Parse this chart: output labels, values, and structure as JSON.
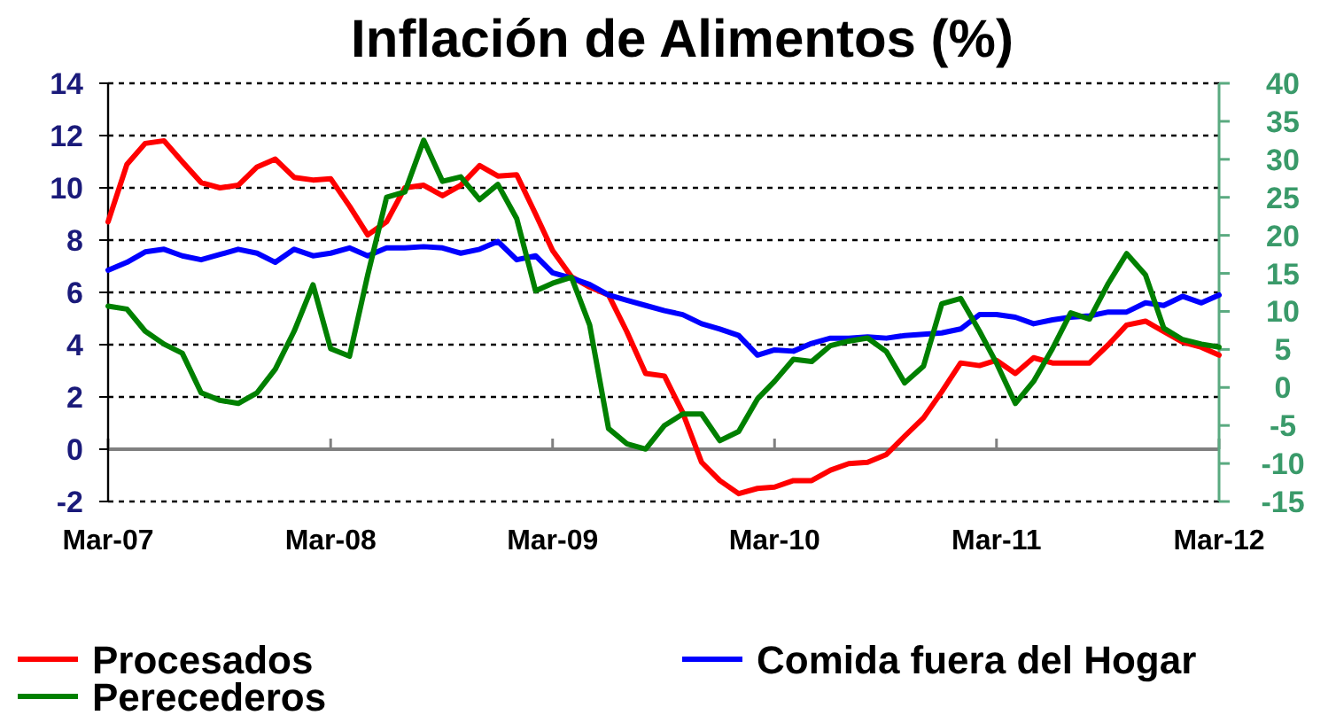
{
  "chart_data": {
    "type": "line",
    "title": "Inflación de Alimentos (%)",
    "x": [
      "2007-03",
      "2007-04",
      "2007-05",
      "2007-06",
      "2007-07",
      "2007-08",
      "2007-09",
      "2007-10",
      "2007-11",
      "2007-12",
      "2008-01",
      "2008-02",
      "2008-03",
      "2008-04",
      "2008-05",
      "2008-06",
      "2008-07",
      "2008-08",
      "2008-09",
      "2008-10",
      "2008-11",
      "2008-12",
      "2009-01",
      "2009-02",
      "2009-03",
      "2009-04",
      "2009-05",
      "2009-06",
      "2009-07",
      "2009-08",
      "2009-09",
      "2009-10",
      "2009-11",
      "2009-12",
      "2010-01",
      "2010-02",
      "2010-03",
      "2010-04",
      "2010-05",
      "2010-06",
      "2010-07",
      "2010-08",
      "2010-09",
      "2010-10",
      "2010-11",
      "2010-12",
      "2011-01",
      "2011-02",
      "2011-03",
      "2011-04",
      "2011-05",
      "2011-06",
      "2011-07",
      "2011-08",
      "2011-09",
      "2011-10",
      "2011-11",
      "2011-12",
      "2012-01",
      "2012-02",
      "2012-03"
    ],
    "series": [
      {
        "name": "Procesados",
        "color": "#ff0000",
        "values": [
          8.7,
          10.9,
          11.7,
          11.8,
          11.0,
          10.2,
          10.0,
          10.1,
          10.8,
          11.1,
          10.4,
          10.3,
          10.35,
          9.3,
          8.2,
          8.7,
          10.0,
          10.1,
          9.7,
          10.1,
          10.85,
          10.45,
          10.5,
          9.0,
          7.6,
          6.6,
          6.2,
          5.9,
          4.5,
          2.9,
          2.8,
          1.4,
          -0.5,
          -1.2,
          -1.7,
          -1.5,
          -1.45,
          -1.2,
          -1.2,
          -0.8,
          -0.55,
          -0.5,
          -0.2,
          0.5,
          1.2,
          2.2,
          3.3,
          3.2,
          3.4,
          2.9,
          3.5,
          3.3,
          3.3,
          3.3,
          4.0,
          4.75,
          4.9,
          4.5,
          4.1,
          3.9,
          3.6
        ]
      },
      {
        "name": "Comida fuera del Hogar",
        "color": "#0000ff",
        "values": [
          6.85,
          7.15,
          7.55,
          7.65,
          7.4,
          7.25,
          7.45,
          7.65,
          7.5,
          7.15,
          7.65,
          7.4,
          7.5,
          7.7,
          7.4,
          7.7,
          7.7,
          7.75,
          7.7,
          7.5,
          7.65,
          7.95,
          7.25,
          7.4,
          6.75,
          6.55,
          6.3,
          5.9,
          5.7,
          5.5,
          5.3,
          5.15,
          4.8,
          4.6,
          4.35,
          3.6,
          3.8,
          3.75,
          4.05,
          4.25,
          4.25,
          4.3,
          4.25,
          4.35,
          4.4,
          4.45,
          4.6,
          5.15,
          5.15,
          5.05,
          4.8,
          4.95,
          5.05,
          5.1,
          5.25,
          5.25,
          5.6,
          5.5,
          5.85,
          5.6,
          5.9
        ]
      },
      {
        "name": "Perecederos",
        "color": "#008000",
        "axis": "y2",
        "values": [
          10.7,
          10.3,
          7.4,
          5.7,
          4.5,
          -0.7,
          -1.7,
          -2.1,
          -0.7,
          2.4,
          7.4,
          13.5,
          5.1,
          4.1,
          14.8,
          25.0,
          25.7,
          32.5,
          27.1,
          27.7,
          24.7,
          26.7,
          22.2,
          12.7,
          13.7,
          14.5,
          8.2,
          -5.4,
          -7.4,
          -8.1,
          -5.0,
          -3.5,
          -3.5,
          -7.0,
          -5.8,
          -1.5,
          0.8,
          3.7,
          3.4,
          5.5,
          6.1,
          6.5,
          4.7,
          0.6,
          2.8,
          11.0,
          11.7,
          7.4,
          3.2,
          -2.1,
          0.8,
          5.1,
          9.8,
          9.0,
          13.7,
          17.6,
          14.8,
          7.8,
          6.3,
          5.7,
          5.3
        ]
      }
    ],
    "xlim": [
      "2007-03",
      "2012-03"
    ],
    "xticks": [
      {
        "value": "2007-03",
        "label": "Mar-07"
      },
      {
        "value": "2008-03",
        "label": "Mar-08"
      },
      {
        "value": "2009-03",
        "label": "Mar-09"
      },
      {
        "value": "2010-03",
        "label": "Mar-10"
      },
      {
        "value": "2011-03",
        "label": "Mar-11"
      },
      {
        "value": "2012-03",
        "label": "Mar-12"
      }
    ],
    "ylim": [
      -2,
      14
    ],
    "yticks": [
      -2,
      0,
      2,
      4,
      6,
      8,
      10,
      12,
      14
    ],
    "y2lim": [
      -15,
      40
    ],
    "y2ticks": [
      -15,
      -10,
      -5,
      0,
      5,
      10,
      15,
      20,
      25,
      30,
      35,
      40
    ],
    "grid": "y",
    "legend": "bottom",
    "line_style": "solid"
  }
}
